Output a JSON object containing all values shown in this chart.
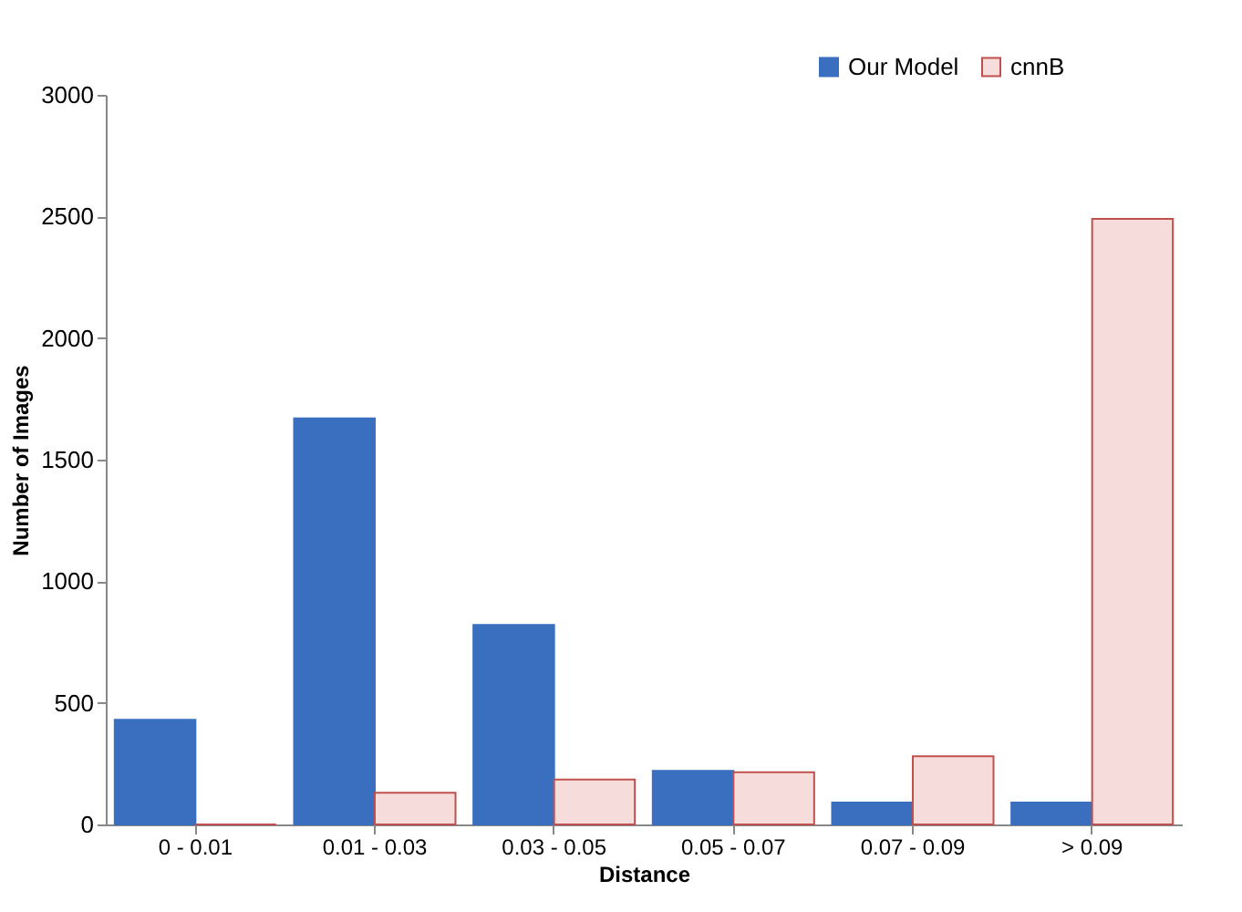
{
  "chart_data": {
    "type": "bar",
    "xlabel": "Distance",
    "ylabel": "Number of Images",
    "categories": [
      "0 - 0.01",
      "0.01 - 0.03",
      "0.03 - 0.05",
      "0.05 - 0.07",
      "0.07 - 0.09",
      "> 0.09"
    ],
    "series": [
      {
        "name": "Our Model",
        "color": "#3a6fc0",
        "values": [
          430,
          1670,
          820,
          220,
          90,
          90
        ]
      },
      {
        "name": "cnnB",
        "color": "#c0504d",
        "values": [
          0,
          130,
          185,
          215,
          280,
          2490
        ]
      }
    ],
    "ylim": [
      0,
      3000
    ],
    "yticks": [
      0,
      500,
      1000,
      1500,
      2000,
      2500,
      3000
    ],
    "grid": false,
    "legend": "top right"
  }
}
